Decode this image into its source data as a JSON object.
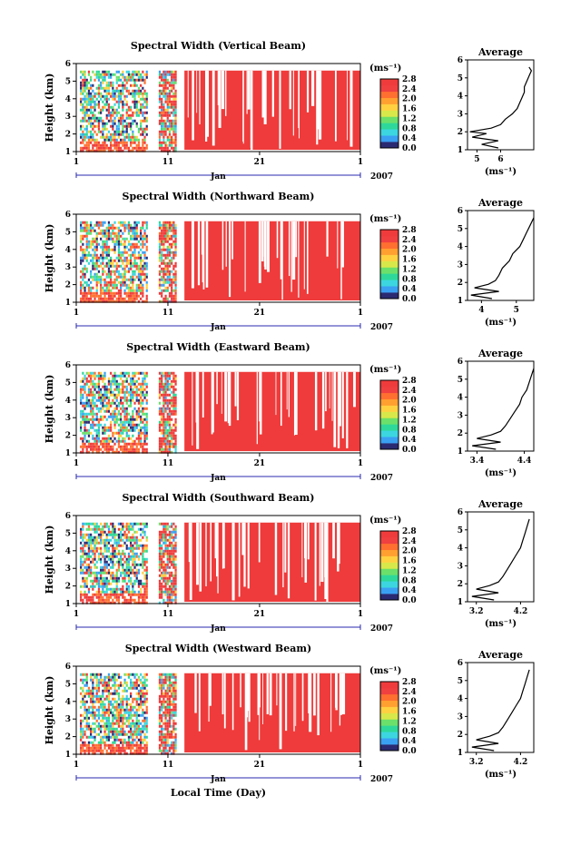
{
  "chart_data": {
    "type": "heatmap",
    "x_axis": {
      "ticks": [
        "1",
        "11",
        "21",
        "1"
      ],
      "month_label": "Jan",
      "year_label": "2007",
      "label": "Local Time (Day)"
    },
    "y_axis": {
      "label": "Height (km)",
      "ticks": [
        "1",
        "2",
        "3",
        "4",
        "5",
        "6"
      ],
      "range_km": [
        1,
        6
      ]
    },
    "colorbar": {
      "unit": "(ms⁻¹)",
      "colors": [
        "#2a2a72",
        "#3aa0f2",
        "#3cd6e0",
        "#2ed89a",
        "#6be06b",
        "#d8e84a",
        "#ffd040",
        "#ffa030",
        "#ff7030",
        "#f04040",
        "#ef3b3b"
      ]
    },
    "panels": [
      {
        "title": "Spectral Width (Vertical Beam)",
        "cbar_ticks": [
          "0.0",
          "0.4",
          "0.8",
          "1.2",
          "1.6",
          "2.0",
          "2.4",
          "2.8"
        ],
        "avg": {
          "title": "Average",
          "xticks": [
            "5",
            "6"
          ],
          "xlim": [
            4.6,
            7.4
          ],
          "xlabel": "(ms⁻¹)",
          "profile": [
            [
              1.1,
              5.9
            ],
            [
              1.3,
              5.2
            ],
            [
              1.5,
              5.9
            ],
            [
              1.7,
              4.8
            ],
            [
              1.9,
              5.4
            ],
            [
              2.0,
              4.7
            ],
            [
              2.2,
              5.6
            ],
            [
              2.4,
              6.0
            ],
            [
              2.7,
              6.2
            ],
            [
              3.0,
              6.5
            ],
            [
              3.3,
              6.7
            ],
            [
              3.6,
              6.8
            ],
            [
              3.9,
              6.9
            ],
            [
              4.2,
              7.0
            ],
            [
              4.5,
              7.0
            ],
            [
              4.8,
              7.1
            ],
            [
              5.1,
              7.2
            ],
            [
              5.4,
              7.3
            ],
            [
              5.6,
              7.2
            ]
          ]
        }
      },
      {
        "title": "Spectral Width (Northward Beam)",
        "cbar_ticks": [
          "0.0",
          "0.4",
          "0.8",
          "1.2",
          "1.6",
          "2.0",
          "2.4",
          "2.8"
        ],
        "avg": {
          "title": "Average",
          "xticks": [
            "4",
            "5"
          ],
          "xlim": [
            3.6,
            5.5
          ],
          "xlabel": "(ms⁻¹)",
          "profile": [
            [
              1.1,
              4.3
            ],
            [
              1.3,
              3.7
            ],
            [
              1.5,
              4.5
            ],
            [
              1.7,
              3.8
            ],
            [
              1.9,
              4.2
            ],
            [
              2.1,
              4.4
            ],
            [
              2.4,
              4.5
            ],
            [
              2.8,
              4.6
            ],
            [
              3.2,
              4.8
            ],
            [
              3.6,
              4.9
            ],
            [
              4.0,
              5.1
            ],
            [
              4.4,
              5.2
            ],
            [
              4.8,
              5.3
            ],
            [
              5.2,
              5.4
            ],
            [
              5.6,
              5.5
            ]
          ]
        }
      },
      {
        "title": "Spectral Width (Eastward Beam)",
        "cbar_ticks": [
          "0.0",
          "0.4",
          "0.8",
          "1.2",
          "1.6",
          "2.0",
          "2.4",
          "2.8"
        ],
        "avg": {
          "title": "Average",
          "xticks": [
            "3.4",
            "4.4"
          ],
          "xlim": [
            3.2,
            4.6
          ],
          "xlabel": "(ms⁻¹)",
          "profile": [
            [
              1.1,
              3.8
            ],
            [
              1.3,
              3.3
            ],
            [
              1.5,
              3.9
            ],
            [
              1.7,
              3.4
            ],
            [
              1.9,
              3.7
            ],
            [
              2.1,
              3.9
            ],
            [
              2.4,
              4.0
            ],
            [
              2.8,
              4.1
            ],
            [
              3.2,
              4.2
            ],
            [
              3.6,
              4.3
            ],
            [
              4.0,
              4.35
            ],
            [
              4.4,
              4.45
            ],
            [
              4.8,
              4.5
            ],
            [
              5.2,
              4.55
            ],
            [
              5.6,
              4.6
            ]
          ]
        }
      },
      {
        "title": "Spectral Width (Southward Beam)",
        "cbar_ticks": [
          "0.0",
          "0.4",
          "0.8",
          "1.2",
          "1.6",
          "2.0",
          "2.4",
          "2.8"
        ],
        "avg": {
          "title": "Average",
          "xticks": [
            "3.2",
            "4.2"
          ],
          "xlim": [
            3.0,
            4.5
          ],
          "xlabel": "(ms⁻¹)",
          "profile": [
            [
              1.1,
              3.6
            ],
            [
              1.3,
              3.1
            ],
            [
              1.5,
              3.7
            ],
            [
              1.7,
              3.2
            ],
            [
              1.9,
              3.5
            ],
            [
              2.1,
              3.7
            ],
            [
              2.4,
              3.8
            ],
            [
              2.8,
              3.9
            ],
            [
              3.2,
              4.0
            ],
            [
              3.6,
              4.1
            ],
            [
              4.0,
              4.2
            ],
            [
              4.4,
              4.25
            ],
            [
              4.8,
              4.3
            ],
            [
              5.2,
              4.35
            ],
            [
              5.6,
              4.4
            ]
          ]
        }
      },
      {
        "title": "Spectral Width (Westward Beam)",
        "cbar_ticks": [
          "0.0",
          "0.4",
          "0.8",
          "1.2",
          "1.6",
          "2.0",
          "2.4",
          "2.8"
        ],
        "avg": {
          "title": "Average",
          "xticks": [
            "3.2",
            "4.2"
          ],
          "xlim": [
            3.0,
            4.5
          ],
          "xlabel": "(ms⁻¹)",
          "profile": [
            [
              1.1,
              3.6
            ],
            [
              1.3,
              3.1
            ],
            [
              1.5,
              3.7
            ],
            [
              1.7,
              3.2
            ],
            [
              1.9,
              3.5
            ],
            [
              2.1,
              3.7
            ],
            [
              2.4,
              3.8
            ],
            [
              2.8,
              3.9
            ],
            [
              3.2,
              4.0
            ],
            [
              3.6,
              4.1
            ],
            [
              4.0,
              4.2
            ],
            [
              4.4,
              4.25
            ],
            [
              4.8,
              4.3
            ],
            [
              5.2,
              4.35
            ],
            [
              5.6,
              4.4
            ]
          ]
        }
      }
    ]
  }
}
